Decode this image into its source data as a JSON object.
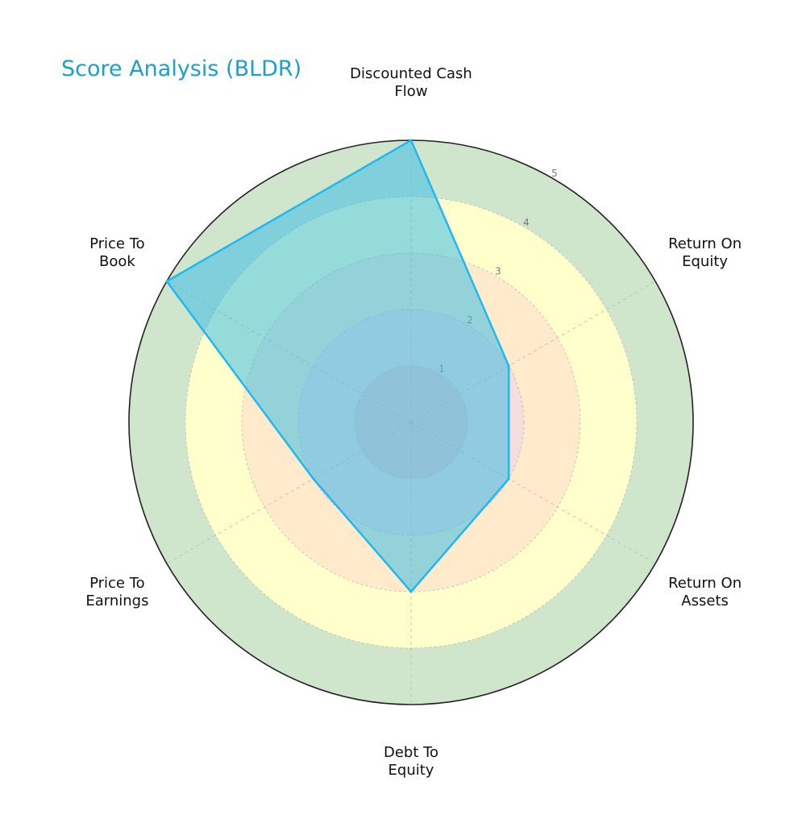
{
  "chart_data": {
    "type": "radar",
    "title": "Score Analysis (BLDR)",
    "categories": [
      "Discounted Cash\nFlow",
      "Return On\nEquity",
      "Return On\nAssets",
      "Debt To\nEquity",
      "Price To\nEarnings",
      "Price To\nBook"
    ],
    "values": [
      5,
      2,
      2,
      3,
      2,
      5
    ],
    "color": "#1fb8f0",
    "rlim": [
      0,
      5
    ],
    "rticks": [
      1,
      2,
      3,
      4,
      5
    ],
    "band_colors": [
      "#f6c9c9",
      "#f6dcdc",
      "#ffebcc",
      "#ffffcc",
      "#d0e6cc"
    ],
    "grid": true
  }
}
